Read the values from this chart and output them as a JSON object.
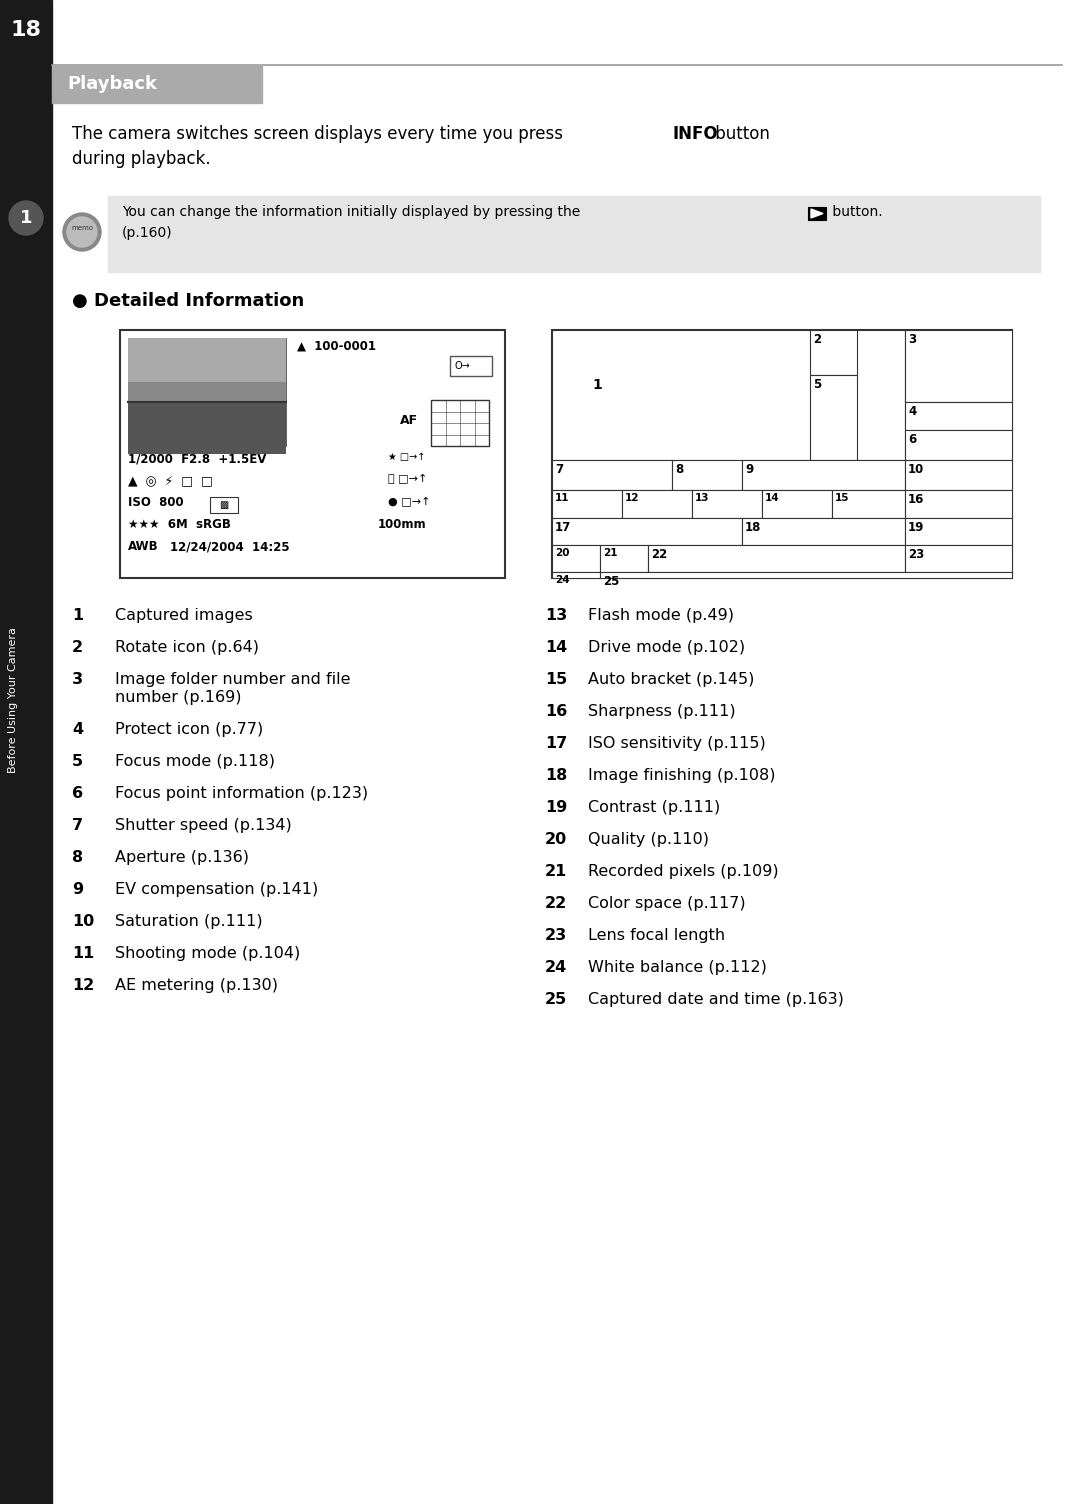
{
  "page_number": "18",
  "section_title": "Playback",
  "chapter_label": "1",
  "chapter_vertical_text": "Before Using Your Camera",
  "left_items": [
    [
      "1",
      "Captured images"
    ],
    [
      "2",
      "Rotate icon (p.64)"
    ],
    [
      "3",
      "Image folder number and file\nnumber (p.169)"
    ],
    [
      "4",
      "Protect icon (p.77)"
    ],
    [
      "5",
      "Focus mode (p.118)"
    ],
    [
      "6",
      "Focus point information (p.123)"
    ],
    [
      "7",
      "Shutter speed (p.134)"
    ],
    [
      "8",
      "Aperture (p.136)"
    ],
    [
      "9",
      "EV compensation (p.141)"
    ],
    [
      "10",
      "Saturation (p.111)"
    ],
    [
      "11",
      "Shooting mode (p.104)"
    ],
    [
      "12",
      "AE metering (p.130)"
    ]
  ],
  "right_items": [
    [
      "13",
      "Flash mode (p.49)"
    ],
    [
      "14",
      "Drive mode (p.102)"
    ],
    [
      "15",
      "Auto bracket (p.145)"
    ],
    [
      "16",
      "Sharpness (p.111)"
    ],
    [
      "17",
      "ISO sensitivity (p.115)"
    ],
    [
      "18",
      "Image finishing (p.108)"
    ],
    [
      "19",
      "Contrast (p.111)"
    ],
    [
      "20",
      "Quality (p.110)"
    ],
    [
      "21",
      "Recorded pixels (p.109)"
    ],
    [
      "22",
      "Color space (p.117)"
    ],
    [
      "23",
      "Lens focal length"
    ],
    [
      "24",
      "White balance (p.112)"
    ],
    [
      "25",
      "Captured date and time (p.163)"
    ]
  ]
}
